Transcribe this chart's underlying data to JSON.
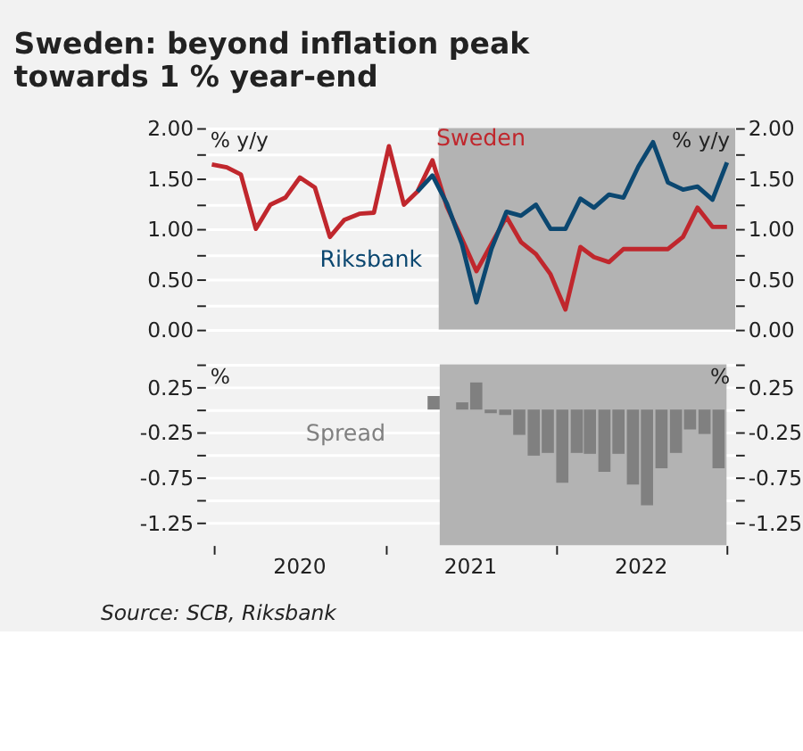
{
  "chart_data": [
    {
      "type": "line",
      "title": "Sweden: beyond inflation peak towards 1 % year-end",
      "ylabel": "% y/y",
      "y2label": "% y/y",
      "x": [
        "2020-01-15",
        "2020-02-15",
        "2020-03-15",
        "2020-04-15",
        "2020-05-15",
        "2020-06-15",
        "2020-07-15",
        "2020-08-15",
        "2020-09-15",
        "2020-10-15",
        "2020-11-15",
        "2020-12-15",
        "2021-01-15",
        "2021-02-15",
        "2021-03-15",
        "2021-04-15",
        "2021-05-15",
        "2021-06-15",
        "2021-07-15",
        "2021-08-15",
        "2021-09-15",
        "2021-10-15",
        "2021-11-15",
        "2021-12-15",
        "2022-01-15",
        "2022-02-15",
        "2022-03-15",
        "2022-04-15",
        "2022-05-15",
        "2022-06-15",
        "2022-07-15",
        "2022-08-15",
        "2022-09-15",
        "2022-10-15",
        "2022-11-15",
        "2022-12-15"
      ],
      "series": [
        {
          "name": "Sweden",
          "color": "#c0272d",
          "values": [
            1.64,
            1.61,
            1.54,
            1.0,
            1.24,
            1.31,
            1.51,
            1.41,
            0.92,
            1.09,
            1.15,
            1.16,
            1.82,
            1.24,
            1.37,
            1.68,
            1.22,
            0.9,
            0.58,
            0.85,
            1.12,
            0.87,
            0.75,
            0.55,
            0.2,
            0.82,
            0.72,
            0.67,
            0.8,
            0.8,
            0.8,
            0.8,
            0.92,
            1.21,
            1.02,
            1.02
          ]
        },
        {
          "name": "Riksbank",
          "color": "#0b4770",
          "x": [
            "2021-03-15",
            "2021-04-15",
            "2021-05-15",
            "2021-06-15",
            "2021-07-15",
            "2021-08-15",
            "2021-09-15",
            "2021-10-15",
            "2021-11-15",
            "2021-12-15",
            "2022-01-15",
            "2022-02-15",
            "2022-03-15",
            "2022-04-15",
            "2022-05-15",
            "2022-06-15",
            "2022-07-15",
            "2022-08-15",
            "2022-09-15",
            "2022-10-15",
            "2022-11-15",
            "2022-12-15"
          ],
          "values": [
            1.37,
            1.53,
            1.25,
            0.85,
            0.27,
            0.8,
            1.17,
            1.13,
            1.24,
            1.0,
            1.0,
            1.3,
            1.21,
            1.34,
            1.31,
            1.62,
            1.86,
            1.46,
            1.39,
            1.42,
            1.29,
            1.66
          ]
        }
      ],
      "xlim": [
        "2020-01-01",
        "2023-01-01"
      ],
      "ylim": [
        0,
        2
      ],
      "yticks": [
        {
          "value": 0,
          "label": "0.00"
        },
        {
          "value": 0.25,
          "label": null
        },
        {
          "value": 0.5,
          "label": "0.50"
        },
        {
          "value": 0.75,
          "label": null
        },
        {
          "value": 1,
          "label": "1.00"
        },
        {
          "value": 1.25,
          "label": null
        },
        {
          "value": 1.5,
          "label": "1.50"
        },
        {
          "value": 1.75,
          "label": null
        },
        {
          "value": 2,
          "label": "2.00"
        }
      ],
      "y2lim": [
        0,
        2
      ],
      "y2ticks": [
        {
          "value": 0,
          "label": "0.00"
        },
        {
          "value": 0.25,
          "label": null
        },
        {
          "value": 0.5,
          "label": "0.50"
        },
        {
          "value": 0.75,
          "label": null
        },
        {
          "value": 1,
          "label": "1.00"
        },
        {
          "value": 1.25,
          "label": null
        },
        {
          "value": 1.5,
          "label": "1.50"
        },
        {
          "value": 1.75,
          "label": null
        },
        {
          "value": 2,
          "label": "2.00"
        }
      ],
      "bands": [
        {
          "axis": "x",
          "from": "2021-04-28",
          "to": "2023-01-01",
          "color": "#b3b3b3"
        }
      ],
      "grid": "y",
      "tick_labels": "y",
      "legend": false,
      "line_style": "solid",
      "marker": "none"
    },
    {
      "type": "bar",
      "ylabel": "%",
      "y2label": "%",
      "x": [
        "2020-01-15",
        "2020-02-15",
        "2020-03-15",
        "2020-04-15",
        "2020-05-15",
        "2020-06-15",
        "2020-07-15",
        "2020-08-15",
        "2020-09-15",
        "2020-10-15",
        "2020-11-15",
        "2020-12-15",
        "2021-01-15",
        "2021-02-15",
        "2021-03-15",
        "2021-04-15",
        "2021-05-15",
        "2021-06-15",
        "2021-07-15",
        "2021-08-15",
        "2021-09-15",
        "2021-10-15",
        "2021-11-15",
        "2021-12-15",
        "2022-01-15",
        "2022-02-15",
        "2022-03-15",
        "2022-04-15",
        "2022-05-15",
        "2022-06-15",
        "2022-07-15",
        "2022-08-15",
        "2022-09-15",
        "2022-10-15",
        "2022-11-15",
        "2022-12-15"
      ],
      "series": [
        {
          "name": "Spread",
          "color": "#808080",
          "values": [
            0,
            0,
            0,
            0,
            0,
            0,
            0,
            0,
            0,
            0,
            0,
            0,
            0,
            0,
            0,
            0.15,
            0,
            0.08,
            0.3,
            -0.04,
            -0.06,
            -0.28,
            -0.51,
            -0.48,
            -0.81,
            -0.48,
            -0.49,
            -0.69,
            -0.49,
            -0.83,
            -1.06,
            -0.65,
            -0.48,
            -0.22,
            -0.27,
            -0.65
          ]
        }
      ],
      "xlim": [
        "2020-01-01",
        "2023-01-01"
      ],
      "xticks": [
        {
          "value": "2020-01-01",
          "label": null
        },
        {
          "value": "2020-07-01",
          "label": "2020"
        },
        {
          "value": "2021-01-01",
          "label": null
        },
        {
          "value": "2021-07-01",
          "label": "2021"
        },
        {
          "value": "2022-01-01",
          "label": null
        },
        {
          "value": "2022-07-01",
          "label": "2022"
        },
        {
          "value": "2023-01-01",
          "label": null
        }
      ],
      "ylim": [
        -1.5,
        0.5
      ],
      "yticks": [
        {
          "value": 0.5,
          "label": null
        },
        0.25,
        {
          "value": 0,
          "label": null
        },
        -0.25,
        {
          "value": -0.5,
          "label": null
        },
        -0.75,
        {
          "value": -1,
          "label": null
        },
        -1.25
      ],
      "y2lim": [
        -1.5,
        0.5
      ],
      "y2ticks": [
        {
          "value": 0.5,
          "label": null
        },
        0.25,
        {
          "value": 0,
          "label": null
        },
        -0.25,
        {
          "value": -0.5,
          "label": null
        },
        -0.75,
        {
          "value": -1,
          "label": null
        },
        -1.25
      ],
      "bands": [
        {
          "axis": "x",
          "from": "2021-04-28",
          "to": "2023-01-01",
          "color": "#b3b3b3"
        }
      ],
      "annotations": [
        "Source: SCB, Riksbank"
      ],
      "grid": "y",
      "legend": false
    }
  ]
}
